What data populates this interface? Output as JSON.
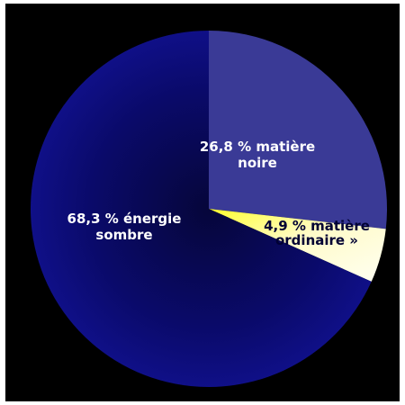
{
  "chart_data": {
    "type": "pie",
    "title": "",
    "slices": [
      {
        "value": 26.8,
        "label_lines": [
          "26,8 % matière",
          "noire"
        ],
        "color": "#3a3a96",
        "text_color": "#ffffff"
      },
      {
        "value": 4.9,
        "label_lines": [
          "4,9 % matière",
          "ordinaire »"
        ],
        "color": "#fffbe0",
        "highlight_color": "#ffff33",
        "text_color": "#000033"
      },
      {
        "value": 68.3,
        "label_lines": [
          "68,3 % énergie",
          "sombre"
        ],
        "color": "#0a0a7a",
        "gradient_inner": "#000010",
        "text_color": "#ffffff"
      }
    ],
    "start_angle_deg": 0,
    "direction": "clockwise",
    "legend": "none"
  }
}
